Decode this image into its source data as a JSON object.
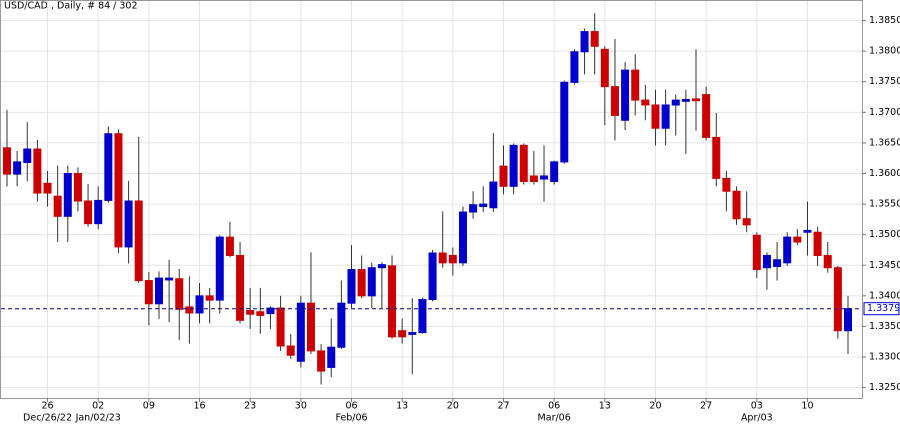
{
  "chart_data": {
    "type": "candlestick",
    "title": "USD/CAD , Daily, # 84 / 302",
    "categories": [
      null,
      null,
      null,
      null,
      "26",
      null,
      null,
      null,
      null,
      "02",
      null,
      null,
      null,
      null,
      "09",
      null,
      null,
      null,
      null,
      "16",
      null,
      null,
      null,
      null,
      "23",
      null,
      null,
      null,
      null,
      "30",
      null,
      null,
      null,
      null,
      "06",
      null,
      null,
      null,
      null,
      "13",
      null,
      null,
      null,
      null,
      "20",
      null,
      null,
      null,
      null,
      "27",
      null,
      null,
      null,
      null,
      "06",
      null,
      null,
      null,
      null,
      "13",
      null,
      null,
      null,
      null,
      "20",
      null,
      null,
      null,
      null,
      "27",
      null,
      null,
      null,
      null,
      "03",
      null,
      null,
      null,
      null,
      "10",
      null,
      null,
      null,
      null
    ],
    "categories2": [
      null,
      null,
      null,
      null,
      "Dec/26/22",
      null,
      null,
      null,
      null,
      "Jan/02/23",
      null,
      null,
      null,
      null,
      null,
      null,
      null,
      null,
      null,
      null,
      null,
      null,
      null,
      null,
      null,
      null,
      null,
      null,
      null,
      null,
      null,
      null,
      null,
      null,
      "Feb/06",
      null,
      null,
      null,
      null,
      null,
      null,
      null,
      null,
      null,
      null,
      null,
      null,
      null,
      null,
      null,
      null,
      null,
      null,
      null,
      "Mar/06",
      null,
      null,
      null,
      null,
      null,
      null,
      null,
      null,
      null,
      null,
      null,
      null,
      null,
      null,
      null,
      null,
      null,
      null,
      null,
      "Apr/03",
      null,
      null,
      null,
      null,
      null,
      null,
      null,
      null,
      null
    ],
    "open": [
      1.3642,
      1.3599,
      1.3618,
      1.364,
      1.3584,
      1.3563,
      1.353,
      1.36,
      1.3555,
      1.3518,
      1.3556,
      1.3665,
      1.348,
      1.3555,
      1.3425,
      1.3387,
      1.3426,
      1.3428,
      1.3382,
      1.3372,
      1.34,
      1.3393,
      1.3496,
      1.3466,
      1.3376,
      1.3374,
      1.3371,
      1.338,
      1.3318,
      1.3293,
      1.3388,
      1.331,
      1.3283,
      1.3316,
      1.3388,
      1.3443,
      1.34,
      1.3446,
      1.3449,
      1.3343,
      1.3337,
      1.334,
      1.3394,
      1.347,
      1.3466,
      1.3454,
      1.3537,
      1.3546,
      1.3544,
      1.3612,
      1.3579,
      1.3646,
      1.3596,
      1.3591,
      1.3587,
      1.3619,
      1.3749,
      1.3799,
      1.3832,
      1.3803,
      1.3742,
      1.3687,
      1.3769,
      1.372,
      1.3712,
      1.3674,
      1.3712,
      1.3718,
      1.3722,
      1.3729,
      1.3659,
      1.3592,
      1.3571,
      1.3526,
      1.3499,
      1.3446,
      1.3448,
      1.3454,
      1.3496,
      1.3504,
      1.3504,
      1.3466,
      1.3446,
      1.3343
    ],
    "high": [
      1.3704,
      1.3637,
      1.3684,
      1.3655,
      1.3604,
      1.3613,
      1.3613,
      1.361,
      1.3583,
      1.3579,
      1.3677,
      1.3672,
      1.3588,
      1.366,
      1.3439,
      1.344,
      1.3459,
      1.3444,
      1.3432,
      1.3421,
      1.3413,
      1.3499,
      1.3521,
      1.3488,
      1.3413,
      1.3413,
      1.3383,
      1.34,
      1.3338,
      1.34,
      1.3471,
      1.3321,
      1.3363,
      1.3425,
      1.3483,
      1.3466,
      1.3454,
      1.3455,
      1.3466,
      1.3363,
      1.3396,
      1.3397,
      1.3475,
      1.3538,
      1.3479,
      1.3546,
      1.3571,
      1.3579,
      1.3666,
      1.3646,
      1.3649,
      1.3649,
      1.3637,
      1.3646,
      1.3621,
      1.3752,
      1.3803,
      1.3837,
      1.3862,
      1.3808,
      1.382,
      1.3782,
      1.3795,
      1.3745,
      1.3737,
      1.3737,
      1.3729,
      1.3737,
      1.3803,
      1.3742,
      1.3699,
      1.3604,
      1.3579,
      1.3571,
      1.3504,
      1.3471,
      1.3488,
      1.3504,
      1.3509,
      1.3554,
      1.3513,
      1.3488,
      1.3449,
      1.34
    ],
    "low": [
      1.3579,
      1.3579,
      1.3587,
      1.3554,
      1.3546,
      1.3488,
      1.3488,
      1.3538,
      1.3513,
      1.3509,
      1.3552,
      1.347,
      1.3453,
      1.3421,
      1.3352,
      1.3362,
      1.3357,
      1.3328,
      1.3322,
      1.3355,
      1.3355,
      1.3371,
      1.3463,
      1.3355,
      1.3346,
      1.3338,
      1.3346,
      1.331,
      1.3297,
      1.3283,
      1.3305,
      1.3255,
      1.3267,
      1.3313,
      1.338,
      1.3396,
      1.338,
      1.338,
      1.333,
      1.3322,
      1.3272,
      1.3338,
      1.3391,
      1.3446,
      1.3433,
      1.3449,
      1.3526,
      1.3537,
      1.3537,
      1.3566,
      1.3566,
      1.3582,
      1.3582,
      1.3554,
      1.3582,
      1.3616,
      1.3745,
      1.3762,
      1.3762,
      1.3679,
      1.3654,
      1.3671,
      1.3695,
      1.3687,
      1.3646,
      1.3646,
      1.3662,
      1.3632,
      1.367,
      1.3654,
      1.3579,
      1.3538,
      1.3516,
      1.3504,
      1.3429,
      1.341,
      1.3425,
      1.3449,
      1.3483,
      1.3466,
      1.3449,
      1.3438,
      1.333,
      1.3305
    ],
    "close": [
      1.3599,
      1.3619,
      1.364,
      1.3568,
      1.3568,
      1.353,
      1.36,
      1.3555,
      1.3518,
      1.3556,
      1.3665,
      1.348,
      1.3555,
      1.3425,
      1.3387,
      1.3429,
      1.3429,
      1.3378,
      1.3372,
      1.34,
      1.3393,
      1.3496,
      1.3466,
      1.336,
      1.337,
      1.3368,
      1.338,
      1.3318,
      1.3303,
      1.3388,
      1.331,
      1.3277,
      1.3316,
      1.3388,
      1.3443,
      1.34,
      1.3446,
      1.3451,
      1.3333,
      1.3333,
      1.334,
      1.3394,
      1.347,
      1.3454,
      1.3454,
      1.3537,
      1.3549,
      1.355,
      1.3586,
      1.3579,
      1.3646,
      1.3587,
      1.3587,
      1.3596,
      1.3619,
      1.3749,
      1.3799,
      1.3832,
      1.3808,
      1.3742,
      1.3695,
      1.3769,
      1.372,
      1.3712,
      1.3674,
      1.3712,
      1.372,
      1.3721,
      1.3719,
      1.3659,
      1.3592,
      1.3571,
      1.3526,
      1.3516,
      1.3443,
      1.3466,
      1.3459,
      1.3496,
      1.3488,
      1.3507,
      1.3466,
      1.3446,
      1.3343,
      1.3379
    ],
    "up_color": "#0000cc",
    "down_color": "#cc0000",
    "last_value": 1.3379,
    "last_label": "1.3379",
    "ylim": [
      1.3233,
      1.3882
    ],
    "yticks": [
      {
        "value": 1.325,
        "label": "1.3250"
      },
      {
        "value": 1.33,
        "label": "1.3300"
      },
      {
        "value": 1.335,
        "label": "1.3350"
      },
      {
        "value": 1.34,
        "label": "1.3400"
      },
      {
        "value": 1.345,
        "label": "1.3450"
      },
      {
        "value": 1.35,
        "label": "1.3500"
      },
      {
        "value": 1.355,
        "label": "1.3550"
      },
      {
        "value": 1.36,
        "label": "1.3600"
      },
      {
        "value": 1.365,
        "label": "1.3650"
      },
      {
        "value": 1.37,
        "label": "1.3700"
      },
      {
        "value": 1.375,
        "label": "1.3750"
      },
      {
        "value": 1.38,
        "label": "1.3800"
      },
      {
        "value": 1.385,
        "label": "1.3850"
      }
    ],
    "grid": true
  }
}
